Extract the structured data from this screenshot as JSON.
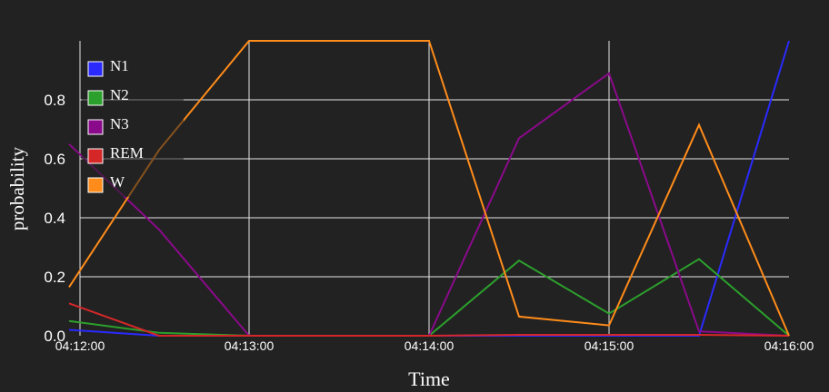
{
  "chart_data": {
    "type": "line",
    "xlabel": "Time",
    "ylabel": "probability",
    "x": [
      "04:12:00",
      "04:12:30",
      "04:13:00",
      "04:13:30",
      "04:14:00",
      "04:14:30",
      "04:15:00",
      "04:15:30",
      "04:16:00"
    ],
    "x_ticks": [
      "04:12:00",
      "04:13:00",
      "04:14:00",
      "04:15:00",
      "04:16:00"
    ],
    "y_ticks": [
      "0.0",
      "0.2",
      "0.4",
      "0.6",
      "0.8"
    ],
    "ylim": [
      0,
      1
    ],
    "grid": true,
    "legend_position": "top-left",
    "series": [
      {
        "name": "N1",
        "color": "#2a2aff",
        "values": [
          0.02,
          0.0,
          0.0,
          0.0,
          0.0,
          0.0,
          0.0,
          0.0,
          1.0
        ]
      },
      {
        "name": "N2",
        "color": "#2ca02c",
        "values": [
          0.05,
          0.01,
          0.0,
          0.0,
          0.0,
          0.255,
          0.075,
          0.26,
          0.0
        ]
      },
      {
        "name": "N3",
        "color": "#8b0a8b",
        "values": [
          0.65,
          0.36,
          0.0,
          0.0,
          0.0,
          0.67,
          0.89,
          0.015,
          0.0
        ]
      },
      {
        "name": "REM",
        "color": "#d62728",
        "values": [
          0.11,
          0.0,
          0.0,
          0.0,
          0.0,
          0.003,
          0.003,
          0.003,
          0.0
        ]
      },
      {
        "name": "W",
        "color": "#ff8c1a",
        "values": [
          0.165,
          0.63,
          1.0,
          1.0,
          1.0,
          0.065,
          0.035,
          0.715,
          0.0
        ]
      }
    ]
  }
}
